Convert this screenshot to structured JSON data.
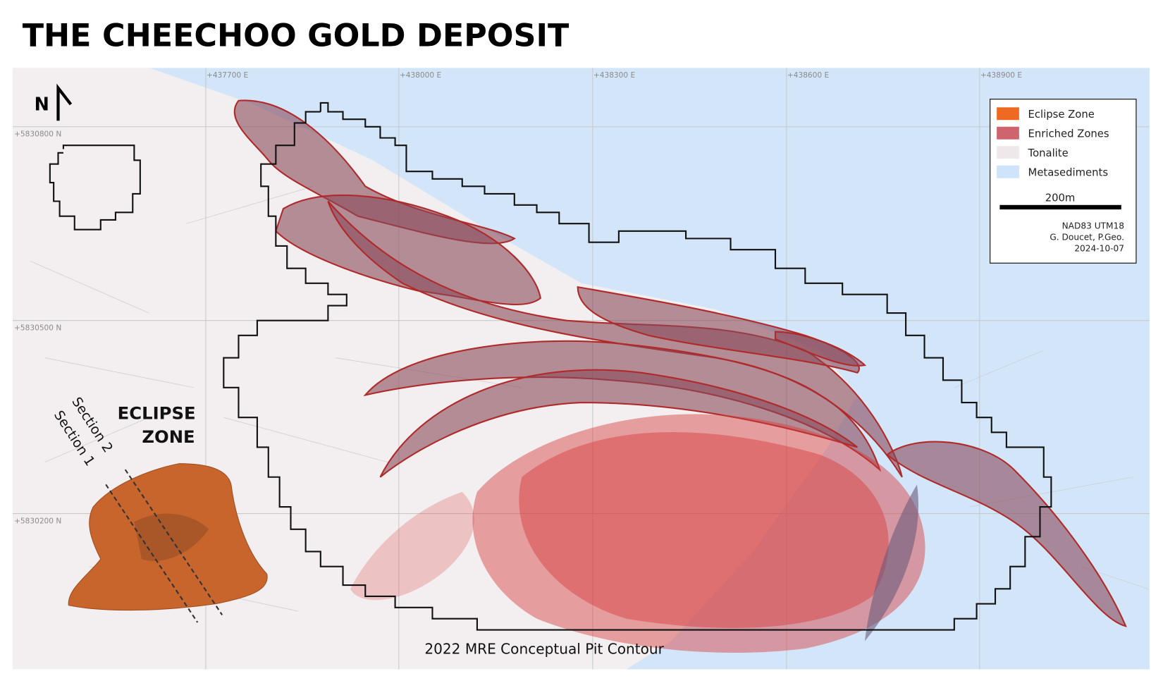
{
  "header": {
    "title": "THE CHEECHOO GOLD DEPOSIT"
  },
  "map": {
    "easting_labels": [
      "+437700 E",
      "+438000 E",
      "+438300 E",
      "+438600 E",
      "+438900 E"
    ],
    "northing_labels": [
      "+5830800 N",
      "+5830500 N",
      "+5830200 N"
    ],
    "north_arrow": "N",
    "annotations": {
      "eclipse_zone": [
        "ECLIPSE",
        "ZONE"
      ],
      "section_1": "Section 1",
      "section_2": "Section 2",
      "pit_contour": "2022 MRE Conceptual Pit Contour"
    }
  },
  "legend": {
    "items": [
      "Eclipse Zone",
      "Enriched Zones",
      "Tonalite",
      "Metasediments"
    ],
    "scale_bar": "200m",
    "credits": [
      "NAD83 UTM18",
      "G. Doucet, P.Geo.",
      "2024-10-07"
    ]
  }
}
